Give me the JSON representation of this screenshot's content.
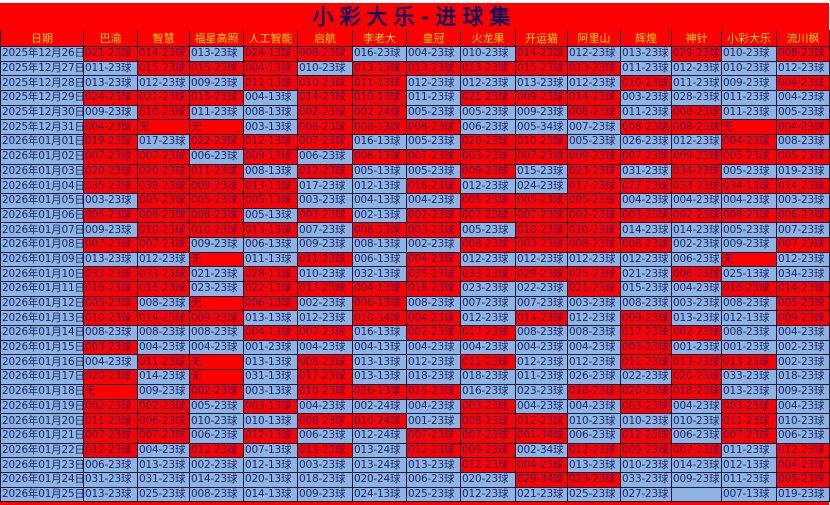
{
  "title": "小彩大乐-进球集",
  "colors": {
    "hit": "#ff0000",
    "normal": "#8db4e2",
    "header_text": "#ffd700",
    "title_text": "#13105e"
  },
  "headers": [
    "日期",
    "巴渝",
    "智慧",
    "福星高照",
    "人工智能",
    "启航",
    "李老大",
    "皇冠",
    "火龙果",
    "开运猫",
    "阿里山",
    "辉煌",
    "神针",
    "小彩大乐",
    "流川枫"
  ],
  "rows": [
    {
      "date": "2025年12月26日",
      "cells": [
        "021-23球",
        "014-23球",
        "013-23球",
        "024-13球",
        "008-23球",
        "016-23球",
        "004-23球",
        "010-23球",
        "014-23球",
        "012-23球",
        "013-23球",
        "029-23球",
        "010-23球",
        "008-23球"
      ],
      "hits": "11011000100101"
    },
    {
      "date": "2025年12月27日",
      "cells": [
        "011-23球",
        "015-23球",
        "015-23球",
        "004-13球",
        "010-23球",
        "013-13球",
        "013-23球",
        "013-23球",
        "015-23球",
        "013-23球",
        "011-23球",
        "012-23球",
        "010-23球",
        "012-23球"
      ],
      "hits": "01110111110000"
    },
    {
      "date": "2025年12月28日",
      "cells": [
        "013-23球",
        "012-23球",
        "009-23球",
        "011-13球",
        "010-23球",
        "011-13球",
        "012-23球",
        "012-23球",
        "013-23球",
        "012-23球",
        "010-23球",
        "011-23球",
        "009-23球",
        "004-23球"
      ],
      "hits": "00011100001001"
    },
    {
      "date": "2025年12月29日",
      "cells": [
        "024-23球",
        "021-23球",
        "015-23球",
        "004-13球",
        "014-23球",
        "010-13球",
        "011-23球",
        "021-23球",
        "009-23球",
        "014-23球",
        "003-23球",
        "028-23球",
        "011-23球",
        "004-23球"
      ],
      "hits": "11101101110000"
    },
    {
      "date": "2025年12月30日",
      "cells": [
        "009-23球",
        "010-23球",
        "011-23球",
        "008-13球",
        "002-23球",
        "002-24球",
        "005-23球",
        "005-23球",
        "009-23球",
        "008-23球",
        "011-23球",
        "008-23球",
        "011-23球",
        "005-23球"
      ],
      "hits": "01001100010100"
    },
    {
      "date": "2025年12月31日",
      "cells": [
        "004-23球",
        "无",
        "无",
        "003-13球",
        "008-23球",
        "008-13球",
        "008-23球",
        "006-23球",
        "005-34球",
        "007-23球",
        "008-23球",
        "008-23球",
        "无",
        "004-23球"
      ],
      "hits": "11101110001111"
    },
    {
      "date": "2026年01月01日",
      "cells": [
        "019-23球",
        "017-23球",
        "022-23球",
        "012-13球",
        "007-23球",
        "016-13球",
        "005-23球",
        "020-23球",
        "010-23球",
        "005-23球",
        "026-23球",
        "012-23球",
        "004-23球",
        "008-23球"
      ],
      "hits": "10111001100010"
    },
    {
      "date": "2026年01月02日",
      "cells": [
        "007-23球",
        "007-23球",
        "006-23球",
        "009-13球",
        "006-23球",
        "006-13球",
        "007-23球",
        "003-23球",
        "007-23球",
        "009-23球",
        "007-23球",
        "009-23球",
        "005-23球",
        "005-23球"
      ],
      "hits": "11010111111111"
    },
    {
      "date": "2026年01月03日",
      "cells": [
        "020-23球",
        "020-23球",
        "011-23球",
        "008-13球",
        "012-23球",
        "005-13球",
        "005-23球",
        "009-23球",
        "015-23球",
        "023-23球",
        "031-23球",
        "034-23球",
        "005-23球",
        "019-23球"
      ],
      "hits": "11101001010100"
    },
    {
      "date": "2026年01月04日",
      "cells": [
        "035-23球",
        "038-23球",
        "009-23球",
        "013-13球",
        "017-23球",
        "012-13球",
        "016-23球",
        "012-23球",
        "024-23球",
        "017-23球",
        "027-23球",
        "033-23球",
        "034-13球",
        "014-23球"
      ],
      "hits": "11110010011111"
    },
    {
      "date": "2026年01月05日",
      "cells": [
        "003-23球",
        "005-23球",
        "005-23球",
        "005-13球",
        "003-23球",
        "004-13球",
        "004-23球",
        "005-23球",
        "005-23球",
        "005-23球",
        "004-23球",
        "004-23球",
        "004-23球",
        "003-23球"
      ],
      "hits": "01110001110000"
    },
    {
      "date": "2026年01月06日",
      "cells": [
        "005-23球",
        "008-23球",
        "008-23球",
        "005-13球",
        "003-23球",
        "002-13球",
        "002-23球",
        "007-23球",
        "007-23球",
        "002-23球",
        "003-23球",
        "002-23球",
        "008-23球",
        "006-23球"
      ],
      "hits": "11101011111111"
    },
    {
      "date": "2026年01月07日",
      "cells": [
        "009-23球",
        "010-23球",
        "010-23球",
        "013-13球",
        "007-23球",
        "008-13球",
        "003-23球",
        "005-23球",
        "010-23球",
        "010-23球",
        "014-23球",
        "014-23球",
        "005-23球",
        "007-23球"
      ],
      "hits": "01110110110000"
    },
    {
      "date": "2026年01月08日",
      "cells": [
        "007-23球",
        "007-23球",
        "009-23球",
        "006-13球",
        "009-23球",
        "008-13球",
        "002-23球",
        "008-23球",
        "003-23球",
        "008-23球",
        "008-23球",
        "002-23球",
        "009-23球",
        "007-23球"
      ],
      "hits": "11000001111001"
    },
    {
      "date": "2026年01月09日",
      "cells": [
        "013-23球",
        "012-23球",
        "无",
        "011-13球",
        "011-23球",
        "006-13球",
        "004-23球",
        "012-23球",
        "012-23球",
        "012-23球",
        "012-23球",
        "006-23球",
        "无",
        "012-23球"
      ],
      "hits": "00101010000010"
    },
    {
      "date": "2026年01月10日",
      "cells": [
        "033-23球",
        "033-23球",
        "021-23球",
        "028-13球",
        "010-23球",
        "032-13球",
        "035-23球",
        "033-23球",
        "029-23球",
        "025-23球",
        "021-23球",
        "006-23球",
        "025-13球",
        "034-23球"
      ],
      "hits": "11010011110100"
    },
    {
      "date": "2026年01月11日",
      "cells": [
        "016-23球",
        "016-23球",
        "023-23球",
        "022-13球",
        "013-23球",
        "004-13球",
        "016-23球",
        "023-23球",
        "022-23球",
        "021-23球",
        "015-23球",
        "004-23球",
        "016-23球",
        "014-23球"
      ],
      "hits": "11011110010011"
    },
    {
      "date": "2026年01月12日",
      "cells": [
        "005-23球",
        "008-23球",
        "无",
        "006-13球",
        "002-23球",
        "006-13球",
        "008-23球",
        "007-23球",
        "007-23球",
        "003-23球",
        "008-23球",
        "003-23球",
        "008-23球",
        "005-23球"
      ],
      "hits": "10110100000001"
    },
    {
      "date": "2026年01月13日",
      "cells": [
        "010-23球",
        "014-23球",
        "009-23球",
        "013-13球",
        "012-23球",
        "010-34球",
        "004-23球",
        "012-23球",
        "014-23球",
        "012-23球",
        "009-23球",
        "013-23球",
        "012-13球",
        "009-23球"
      ],
      "hits": "11100110101001"
    },
    {
      "date": "2026年01月14日",
      "cells": [
        "008-23球",
        "008-23球",
        "008-23球",
        "004-13球",
        "007-23球",
        "016-13球",
        "002-23球",
        "017-23球",
        "008-23球",
        "008-23球",
        "017-23球",
        "002-23球",
        "008-23球",
        "004-23球"
      ],
      "hits": "00011011001100"
    },
    {
      "date": "2026年01月15日",
      "cells": [
        "003-23球",
        "004-23球",
        "004-23球",
        "001-23球",
        "004-23球",
        "004-13球",
        "004-23球",
        "004-23球",
        "004-23球",
        "004-23球",
        "003-23球",
        "001-23球",
        "001-23球",
        "002-23球"
      ],
      "hits": "10000000001000"
    },
    {
      "date": "2026年01月16日",
      "cells": [
        "004-23球",
        "011-23球",
        "无",
        "013-13球",
        "008-23球",
        "013-13球",
        "012-23球",
        "011-23球",
        "012-23球",
        "012-23球",
        "011-23球",
        "013-23球",
        "013-23球",
        "002-23球"
      ],
      "hits": "01101001001110"
    },
    {
      "date": "2026年01月17日",
      "cells": [
        "020-23球",
        "014-23球",
        "无",
        "031-13球",
        "017-23球",
        "013-13球",
        "018-23球",
        "018-23球",
        "011-23球",
        "026-23球",
        "022-23球",
        "020-23球",
        "033-23球",
        "018-23球"
      ],
      "hits": "10101000000100"
    },
    {
      "date": "2026年01月18日",
      "cells": [
        "无",
        "009-23球",
        "002-23球",
        "003-13球",
        "010-23球",
        "026-13球",
        "015-23球",
        "016-23球",
        "023-23球",
        "018-23球",
        "020-23球",
        "018-23球",
        "013-23球",
        "009-23球"
      ],
      "hits": "10101110011100"
    },
    {
      "date": "2026年01月19日",
      "cells": [
        "002-23球",
        "002-23球",
        "005-23球",
        "003-13球",
        "004-23球",
        "002-24球",
        "004-23球",
        "003-23球",
        "004-23球",
        "004-23球",
        "003-23球",
        "004-23球",
        "003-23球",
        "004-23球"
      ],
      "hits": "11010001001010"
    },
    {
      "date": "2026年01月20日",
      "cells": [
        "011-23球",
        "006-23球",
        "010-23球",
        "010-13球",
        "008-23球",
        "010-24球",
        "001-23球",
        "008-23球",
        "012-23球",
        "010-23球",
        "010-23球",
        "010-23球",
        "011-23球",
        "010-23球"
      ],
      "hits": "11001101100010"
    },
    {
      "date": "2026年01月21日",
      "cells": [
        "007-23球",
        "007-23球",
        "006-23球",
        "012-13球",
        "006-23球",
        "012-24球",
        "007-23球",
        "007-23球",
        "001-34球",
        "006-23球",
        "012-23球",
        "006-23球",
        "007-23球",
        "006-23球"
      ],
      "hits": "11010011101010"
    },
    {
      "date": "2026年01月22日",
      "cells": [
        "012-23球",
        "004-23球",
        "012-23球",
        "007-13球",
        "013-23球",
        "013-24球",
        "012-23球",
        "009-23球",
        "002-34球",
        "012-23球",
        "009-23球",
        "007-23球",
        "011-23球",
        "012-23球"
      ],
      "hits": "10101011011101"
    },
    {
      "date": "2026年01月23日",
      "cells": [
        "006-23球",
        "013-23球",
        "002-23球",
        "012-13球",
        "003-23球",
        "013-24球",
        "013-23球",
        "012-23球",
        "004-23球",
        "013-23球",
        "010-23球",
        "014-23球",
        "012-13球",
        "004-23球"
      ],
      "hits": "00000001100001"
    },
    {
      "date": "2026年01月24日",
      "cells": [
        "031-23球",
        "031-23球",
        "014-23球",
        "020-13球",
        "018-23球",
        "020-24球",
        "006-23球",
        "020-23球",
        "029-34球",
        "023-23球",
        "033-23球",
        "009-23球",
        "011-23球",
        "005-23球"
      ],
      "hits": "00000000110001"
    },
    {
      "date": "2026年01月25日",
      "cells": [
        "013-23球",
        "025-23球",
        "008-23球",
        "014-13球",
        "009-23球",
        "024-13球",
        "025-23球",
        "012-23球",
        "021-23球",
        "025-23球",
        "027-23球",
        "",
        "007-13球",
        "019-23球"
      ],
      "hits": "00000000000000"
    }
  ]
}
